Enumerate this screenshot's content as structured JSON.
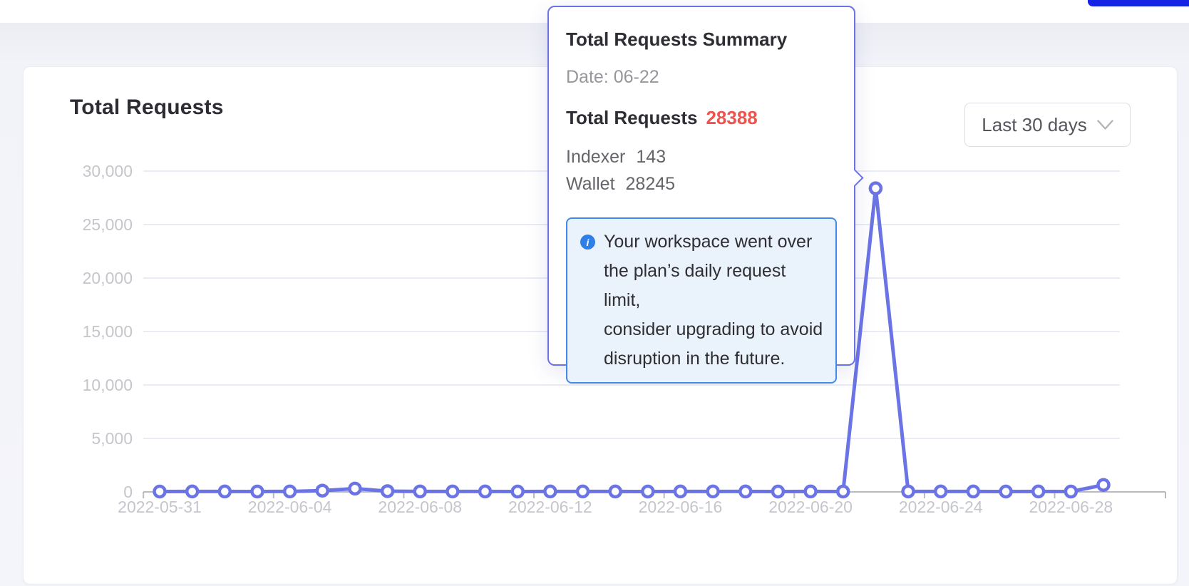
{
  "topbar": {
    "accent_button_color": "#1623e4"
  },
  "card": {
    "title": "Total Requests",
    "range_selector": {
      "value": "Last 30 days"
    }
  },
  "tooltip": {
    "title": "Total Requests Summary",
    "date_label": "Date: 06-22",
    "total_label": "Total Requests",
    "total_value": "28388",
    "total_value_color": "#ed544d",
    "rows": [
      {
        "label": "Indexer",
        "value": "143"
      },
      {
        "label": "Wallet",
        "value": "28245"
      }
    ],
    "alert": {
      "lines": [
        "Your workspace went over",
        "the plan’s daily request limit,",
        "consider upgrading to avoid",
        "disruption in the future."
      ]
    }
  },
  "chart_data": {
    "type": "line",
    "title": "Total Requests",
    "series_name": "Total Requests",
    "x": [
      "2022-05-31",
      "2022-06-01",
      "2022-06-02",
      "2022-06-03",
      "2022-06-04",
      "2022-06-05",
      "2022-06-06",
      "2022-06-07",
      "2022-06-08",
      "2022-06-09",
      "2022-06-10",
      "2022-06-11",
      "2022-06-12",
      "2022-06-13",
      "2022-06-14",
      "2022-06-15",
      "2022-06-16",
      "2022-06-17",
      "2022-06-18",
      "2022-06-19",
      "2022-06-20",
      "2022-06-21",
      "2022-06-22",
      "2022-06-23",
      "2022-06-24",
      "2022-06-25",
      "2022-06-26",
      "2022-06-27",
      "2022-06-28",
      "2022-06-29"
    ],
    "values": [
      35,
      40,
      38,
      36,
      42,
      120,
      310,
      70,
      45,
      40,
      38,
      36,
      40,
      42,
      38,
      36,
      40,
      42,
      38,
      36,
      40,
      35,
      28388,
      45,
      40,
      38,
      36,
      40,
      30,
      650
    ],
    "ylim": [
      0,
      30000
    ],
    "y_ticks": [
      0,
      5000,
      10000,
      15000,
      20000,
      25000,
      30000
    ],
    "y_tick_labels": [
      "0",
      "5,000",
      "10,000",
      "15,000",
      "20,000",
      "25,000",
      "30,000"
    ],
    "x_label_interval": 4,
    "grid": true,
    "legend": "none",
    "highlighted_index": 22,
    "highlighted_breakdown": {
      "indexer": 143,
      "wallet": 28245
    },
    "line_color": "#6b74e4",
    "grid_color": "#e9ebf5",
    "axis_color": "#b9bac0",
    "axis_label_color": "#c5c6cc"
  }
}
